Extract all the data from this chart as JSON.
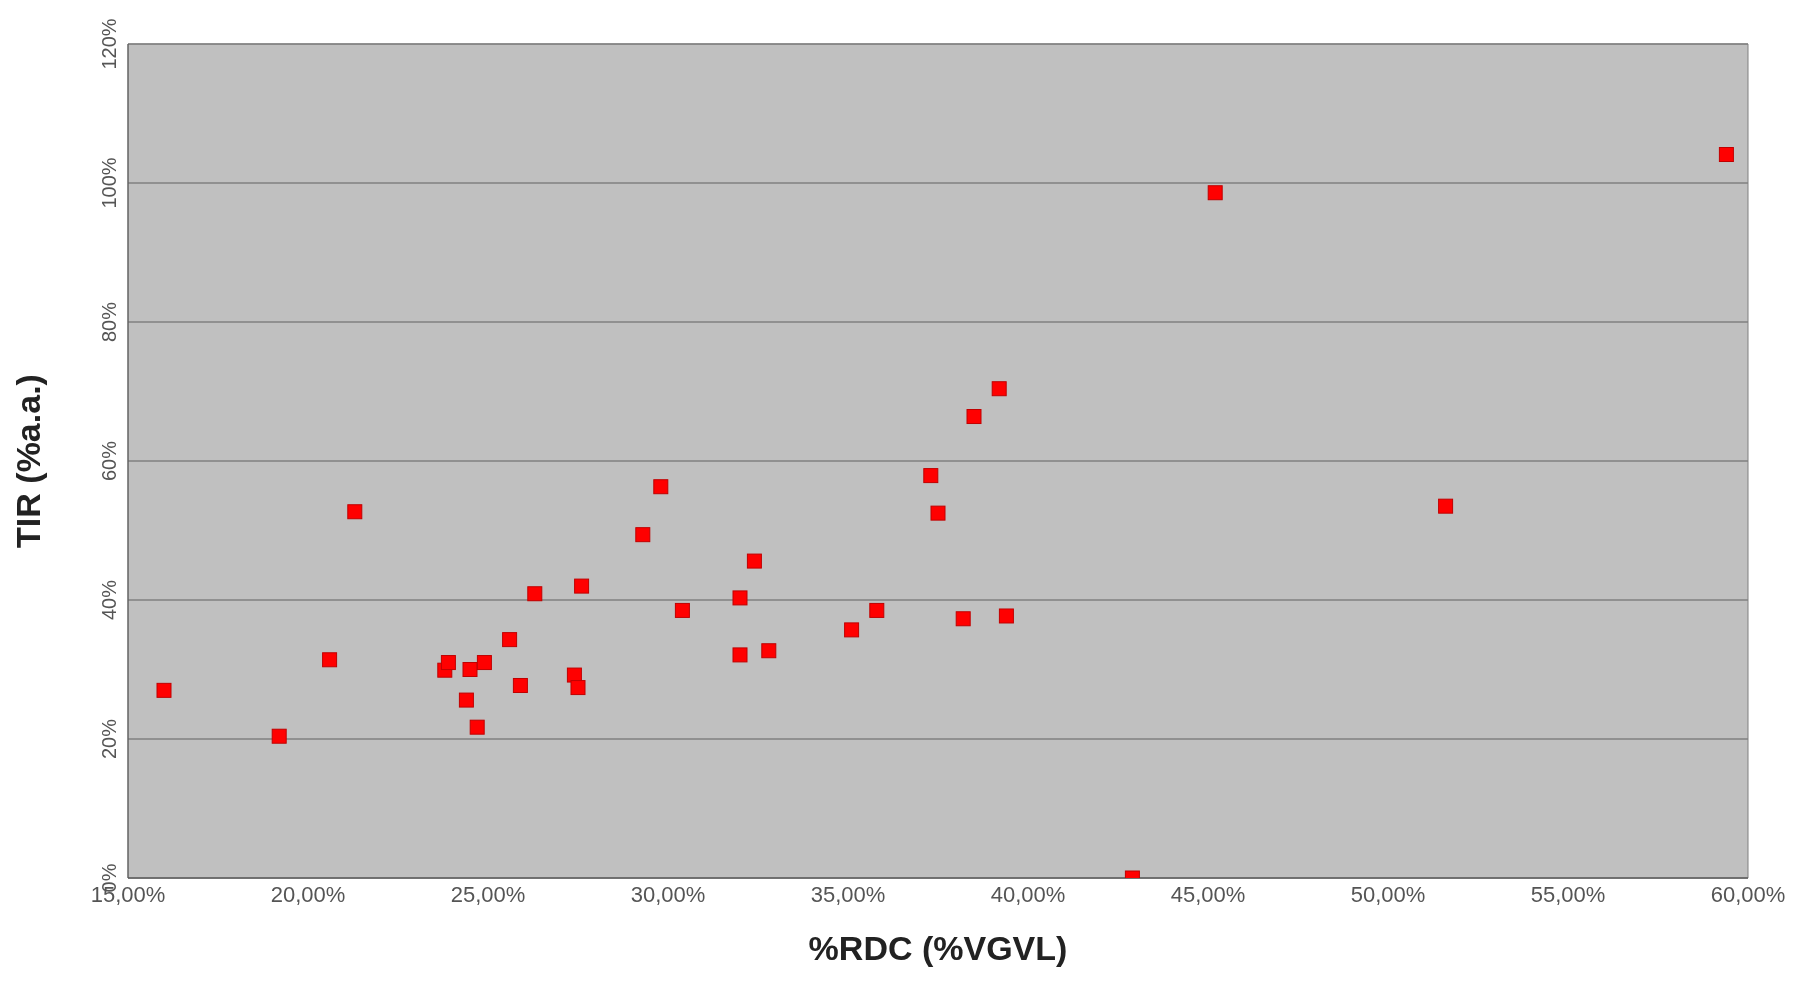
{
  "chart_data": {
    "type": "scatter",
    "xlabel": "%RDC (%VGVL)",
    "ylabel": "TIR (%a.a.)",
    "x": [
      16.0,
      19.2,
      20.6,
      21.3,
      23.8,
      23.9,
      24.4,
      24.5,
      24.7,
      24.9,
      25.6,
      25.9,
      26.3,
      27.4,
      27.5,
      27.6,
      29.3,
      29.8,
      30.4,
      32.0,
      32.0,
      32.4,
      32.8,
      35.1,
      35.8,
      37.3,
      37.5,
      38.2,
      38.5,
      39.2,
      39.4,
      42.9,
      45.2,
      51.6,
      59.4
    ],
    "series": [
      {
        "color": "#ff0000",
        "values": [
          27,
          20.4,
          31.4,
          52.7,
          29.9,
          31,
          25.6,
          30,
          21.7,
          31,
          34.3,
          27.7,
          40.9,
          29.2,
          27.4,
          42,
          49.4,
          56.3,
          38.5,
          32.1,
          40.3,
          45.6,
          32.7,
          35.7,
          38.5,
          57.9,
          52.5,
          37.3,
          66.4,
          70.4,
          37.7,
          0,
          98.6,
          53.5,
          104.1
        ]
      }
    ],
    "xlim": [
      15,
      60
    ],
    "xticks": [
      {
        "value": 15,
        "label": "15,00%"
      },
      {
        "value": 20,
        "label": "20,00%"
      },
      {
        "value": 25,
        "label": "25,00%"
      },
      {
        "value": 30,
        "label": "30,00%"
      },
      {
        "value": 35,
        "label": "35,00%"
      },
      {
        "value": 40,
        "label": "40,00%"
      },
      {
        "value": 45,
        "label": "45,00%"
      },
      {
        "value": 50,
        "label": "50,00%"
      },
      {
        "value": 55,
        "label": "55,00%"
      },
      {
        "value": 60,
        "label": "60,00%"
      }
    ],
    "ylim": [
      0,
      120
    ],
    "yticks": [
      {
        "value": 0,
        "label": "0%"
      },
      {
        "value": 20,
        "label": "20%"
      },
      {
        "value": 40,
        "label": "40%"
      },
      {
        "value": 60,
        "label": "60%"
      },
      {
        "value": 80,
        "label": "80%"
      },
      {
        "value": 100,
        "label": "100%"
      },
      {
        "value": 120,
        "label": "120%"
      }
    ],
    "grid": "y",
    "marker": "square",
    "legend": false
  }
}
